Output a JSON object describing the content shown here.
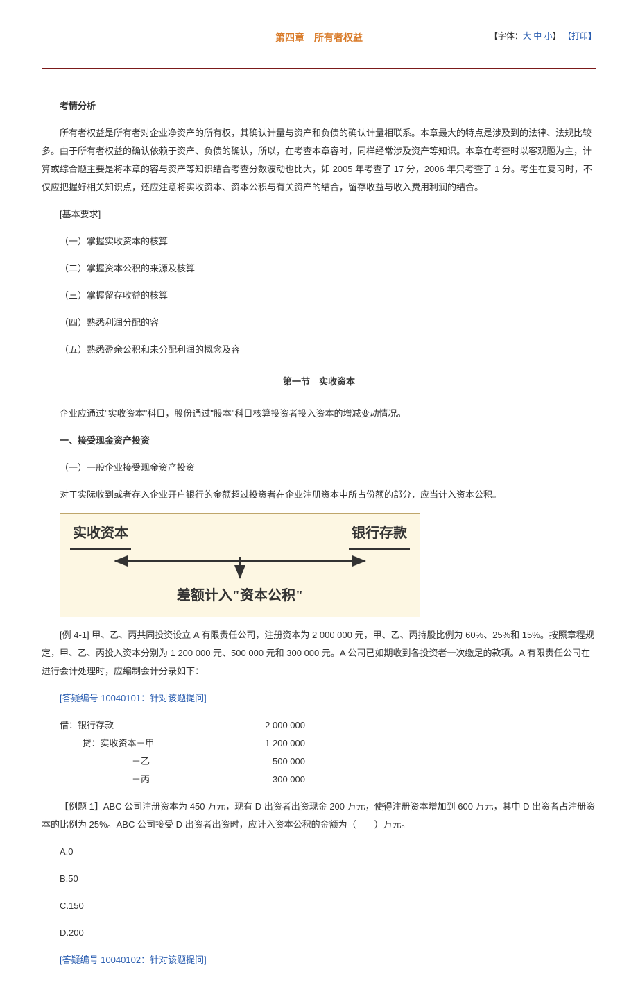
{
  "header": {
    "chapter_title": "第四章　所有者权益",
    "font_prefix": "【字体：",
    "font_large": "大",
    "font_medium": "中",
    "font_small": "小",
    "font_suffix": "】",
    "print": "【打印】"
  },
  "analysis": {
    "heading": "考情分析",
    "paragraph": "所有者权益是所有者对企业净资产的所有权，其确认计量与资产和负债的确认计量相联系。本章最大的特点是涉及到的法律、法规比较多。由于所有者权益的确认依赖于资产、负债的确认，所以，在考查本章容时，同样经常涉及资产等知识。本章在考查时以客观题为主，计算或综合题主要是将本章的容与资产等知识结合考查分数波动也比大，如 2005 年考查了 17 分，2006 年只考查了 1 分。考生在复习时，不仅应把握好相关知识点，还应注意将实收资本、资本公积与有关资产的结合，留存收益与收入费用利润的结合。",
    "req_label": "  [基本要求]",
    "req1": "（一）掌握实收资本的核算",
    "req2": "（二）掌握资本公积的来源及核算",
    "req3": "（三）掌握留存收益的核算",
    "req4": "（四）熟悉利润分配的容",
    "req5": "（五）熟悉盈余公积和未分配利润的概念及容"
  },
  "section1": {
    "title": "第一节　实收资本",
    "intro": "企业应通过\"实收资本\"科目，股份通过\"股本\"科目核算投资者投入资本的增减变动情况。",
    "h1": "一、接受现金资产投资",
    "sub1": "（一）一般企业接受现金资产投资",
    "rule": "对于实际收到或者存入企业开户银行的金额超过投资者在企业注册资本中所占份额的部分，应当计入资本公积。"
  },
  "diagram": {
    "left": "实收资本",
    "right": "银行存款",
    "bottom": "差额计入\"资本公积\"",
    "arrow_color": "#333333",
    "bg_color": "#fdf7e3",
    "border_color": "#bfa66b"
  },
  "example41": {
    "text": "[例 4-1]  甲、乙、丙共同投资设立 A 有限责任公司，注册资本为 2 000 000 元，甲、乙、丙持股比例为 60%、25%和 15%。按照章程规定，甲、乙、丙投入资本分别为 1 200 000 元、500 000 元和 300 000 元。A 公司已如期收到各投资者一次缴足的款项。A 有限责任公司在进行会计处理时，应编制会计分录如下：",
    "ask": "[答疑编号 10040101：针对该题提问]",
    "rows": [
      {
        "label": "借：银行存款",
        "amt": "2 000 000",
        "cls": "entry-label"
      },
      {
        "label": "贷：实收资本－甲",
        "amt": "1 200 000",
        "cls": "entry-label sub"
      },
      {
        "label": "－乙",
        "amt": "500 000",
        "cls": "entry-label sub2"
      },
      {
        "label": "－丙",
        "amt": "300 000",
        "cls": "entry-label sub2"
      }
    ]
  },
  "q1": {
    "stem": "【例题 1】ABC 公司注册资本为 450 万元，现有 D 出资者出资现金 200 万元，使得注册资本增加到 600 万元，其中 D 出资者占注册资本的比例为 25%。ABC 公司接受 D 出资者出资时，应计入资本公积的金额为（　　）万元。",
    "A": "A.0",
    "B": "B.50",
    "C": "C.150",
    "D": "D.200",
    "ask": "[答疑编号 10040102：针对该题提问]"
  }
}
